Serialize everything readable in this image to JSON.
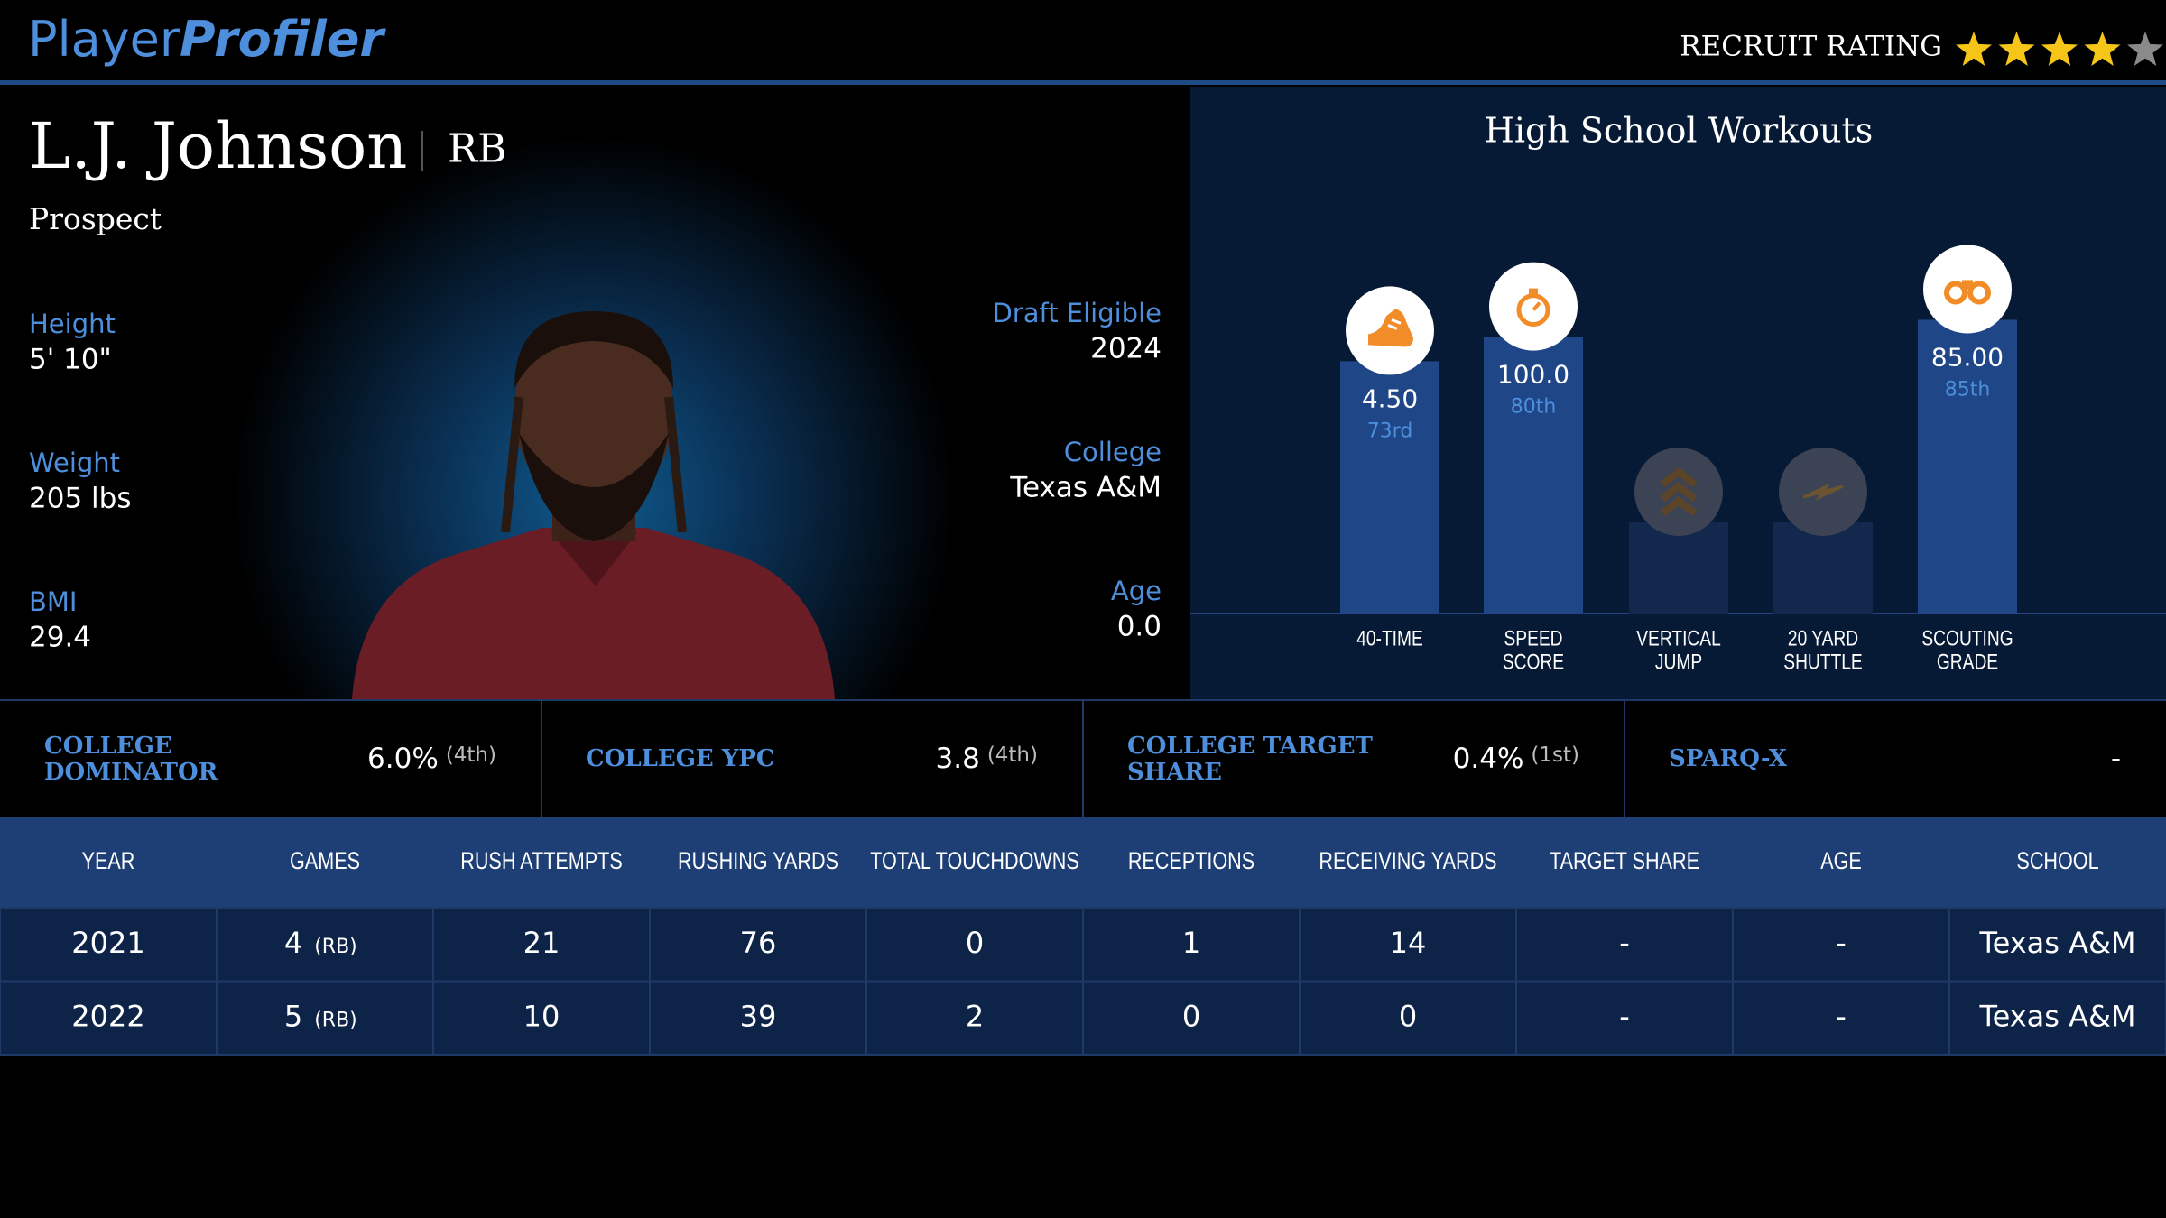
{
  "header": {
    "brand": {
      "first": "Player",
      "second": "Profiler"
    },
    "recruit_rating": {
      "label": "RECRUIT RATING",
      "stars": 4,
      "max_stars": 5
    }
  },
  "player": {
    "name": "L.J. Johnson",
    "position": "RB",
    "status": "Prospect",
    "left_stats": [
      {
        "label": "Height",
        "value": "5' 10\""
      },
      {
        "label": "Weight",
        "value": "205 lbs"
      },
      {
        "label": "BMI",
        "value": "29.4"
      }
    ],
    "right_stats": [
      {
        "label": "Draft Eligible",
        "value": "2024"
      },
      {
        "label": "College",
        "value": "Texas A&M"
      },
      {
        "label": "Age",
        "value": "0.0"
      }
    ]
  },
  "workouts": {
    "title": "High School Workouts",
    "items": [
      {
        "label_lines": [
          "40-TIME"
        ],
        "value": "4.50",
        "percentile": 73,
        "percentile_label": "73rd"
      },
      {
        "label_lines": [
          "SPEED",
          "SCORE"
        ],
        "value": "100.0",
        "percentile": 80,
        "percentile_label": "80th"
      },
      {
        "label_lines": [
          "VERTICAL",
          "JUMP"
        ]
      },
      {
        "label_lines": [
          "20 YARD",
          "SHUTTLE"
        ]
      },
      {
        "label_lines": [
          "SCOUTING",
          "GRADE"
        ],
        "value": "85.00",
        "percentile": 85,
        "percentile_label": "85th"
      }
    ]
  },
  "college_metrics": [
    {
      "label": "COLLEGE DOMINATOR",
      "value": "6.0%",
      "rank": "(4th)"
    },
    {
      "label": "COLLEGE YPC",
      "value": "3.8",
      "rank": "(4th)"
    },
    {
      "label": "COLLEGE TARGET SHARE",
      "value": "0.4%",
      "rank": "(1st)"
    },
    {
      "label": "SPARQ-X",
      "value": "-"
    }
  ],
  "table": {
    "headers": [
      "YEAR",
      "GAMES",
      "RUSH ATTEMPTS",
      "RUSHING YARDS",
      "TOTAL TOUCHDOWNS",
      "RECEPTIONS",
      "RECEIVING YARDS",
      "TARGET SHARE",
      "AGE",
      "SCHOOL"
    ],
    "rows": [
      [
        "2021",
        {
          "text": "4",
          "note": "(RB)"
        },
        "21",
        "76",
        "0",
        "1",
        "14",
        "-",
        "-",
        "Texas A&M"
      ],
      [
        "2022",
        {
          "text": "5",
          "note": "(RB)"
        },
        "10",
        "39",
        "2",
        "0",
        "0",
        "-",
        "-",
        "Texas A&M"
      ]
    ]
  }
}
